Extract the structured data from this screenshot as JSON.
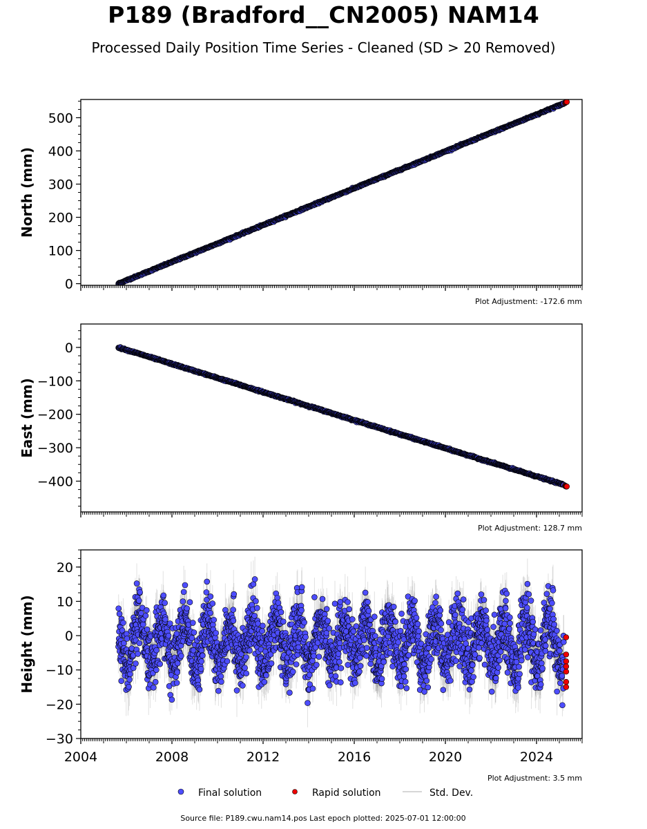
{
  "figure": {
    "title": "P189 (Bradford__CN2005) NAM14",
    "subtitle": "Processed Daily Position Time Series - Cleaned (SD > 20 Removed)",
    "source_note": "Source file: P189.cwu.nam14.pos  Last epoch plotted: 2025-07-01 12:00:00"
  },
  "legend": {
    "placement": "bottom-center",
    "items": [
      {
        "label": "Final solution",
        "color": "#4d4dff",
        "kind": "marker"
      },
      {
        "label": "Rapid solution",
        "color": "#ee0000",
        "kind": "marker"
      },
      {
        "label": "Std. Dev.",
        "color": "#c8c8c8",
        "kind": "line"
      }
    ]
  },
  "colors": {
    "final": "#4d4dff",
    "rapid": "#ee0000",
    "marker_edge": "#000000",
    "stddev": "#000000"
  },
  "chart_data": [
    {
      "type": "scatter",
      "ylabel": "North (mm)",
      "xlabel": "",
      "xlim": [
        2004,
        2026
      ],
      "ylim": [
        -5,
        555
      ],
      "yticks": [
        0,
        100,
        200,
        300,
        400,
        500
      ],
      "x_ticklabels_visible": false,
      "grid": false,
      "adjustment": "Plot Adjustment: -172.6 mm",
      "series": [
        {
          "name": "Final solution",
          "x": [
            2005.65,
            2025.2
          ],
          "y": [
            0,
            543
          ],
          "trend": "linear"
        },
        {
          "name": "Rapid solution",
          "x": [
            2025.25,
            2025.33
          ],
          "y": [
            545,
            549
          ],
          "trend": "linear"
        }
      ]
    },
    {
      "type": "scatter",
      "ylabel": "East (mm)",
      "xlabel": "",
      "xlim": [
        2004,
        2026
      ],
      "ylim": [
        -492,
        70
      ],
      "yticks": [
        0,
        -100,
        -200,
        -300,
        -400
      ],
      "ytick_labels": [
        "0",
        "−100",
        "−200",
        "−300",
        "−400"
      ],
      "x_ticklabels_visible": false,
      "grid": false,
      "adjustment": "Plot Adjustment: 128.7 mm",
      "series": [
        {
          "name": "Final solution",
          "x": [
            2005.65,
            2025.2
          ],
          "y": [
            0,
            -411
          ],
          "trend": "linear"
        },
        {
          "name": "Rapid solution",
          "x": [
            2025.25,
            2025.33
          ],
          "y": [
            -413,
            -416
          ],
          "trend": "linear"
        }
      ]
    },
    {
      "type": "scatter",
      "ylabel": "Height (mm)",
      "xlabel": "",
      "xlim": [
        2004,
        2026
      ],
      "ylim": [
        -30,
        25
      ],
      "yticks": [
        20,
        10,
        0,
        -10,
        -20,
        -30
      ],
      "ytick_labels": [
        "20",
        "10",
        "0",
        "−10",
        "−20",
        "−30"
      ],
      "xticks": [
        2004,
        2008,
        2012,
        2016,
        2020,
        2024
      ],
      "xtick_labels": [
        "2004",
        "2008",
        "2012",
        "2016",
        "2020",
        "2024"
      ],
      "x_ticklabels_visible": true,
      "grid": false,
      "adjustment": "Plot Adjustment: 3.5 mm",
      "series": [
        {
          "name": "Final solution",
          "x_range": [
            2005.65,
            2025.2
          ],
          "mean": -2,
          "seasonal_amplitude_mm": 6,
          "noise_sd_mm": 4.5,
          "range": [
            -25,
            22.5
          ]
        },
        {
          "name": "Rapid solution",
          "x": [
            2025.3,
            2025.3,
            2025.3,
            2025.3,
            2025.3,
            2025.3,
            2025.3
          ],
          "y": [
            -0.5,
            -5.5,
            -7.5,
            -9,
            -10.5,
            -13.5,
            -15
          ]
        }
      ]
    }
  ]
}
